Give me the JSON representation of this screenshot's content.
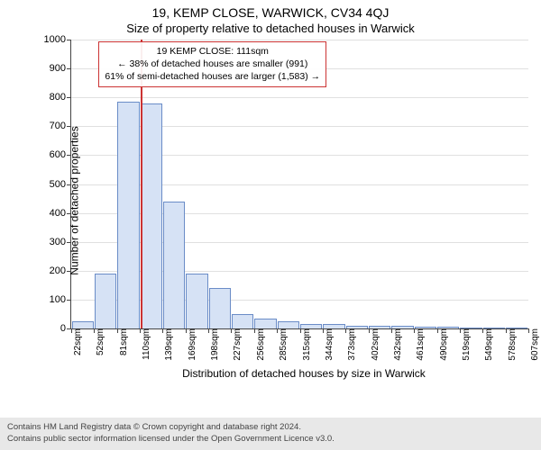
{
  "header": {
    "address": "19, KEMP CLOSE, WARWICK, CV34 4QJ",
    "subtitle": "Size of property relative to detached houses in Warwick"
  },
  "chart": {
    "type": "histogram",
    "y": {
      "label": "Number of detached properties",
      "min": 0,
      "max": 1000,
      "step": 100
    },
    "x": {
      "label": "Distribution of detached houses by size in Warwick",
      "tick_labels": [
        "22sqm",
        "52sqm",
        "81sqm",
        "110sqm",
        "139sqm",
        "169sqm",
        "198sqm",
        "227sqm",
        "256sqm",
        "285sqm",
        "315sqm",
        "344sqm",
        "373sqm",
        "402sqm",
        "432sqm",
        "461sqm",
        "490sqm",
        "519sqm",
        "549sqm",
        "578sqm",
        "607sqm"
      ]
    },
    "bars": [
      25,
      190,
      785,
      780,
      440,
      190,
      140,
      50,
      35,
      25,
      15,
      15,
      10,
      8,
      8,
      5,
      5,
      3,
      3,
      2
    ],
    "bar_fill": "#d6e2f5",
    "bar_stroke": "#6a8cc7",
    "grid_color": "#e0e0e0",
    "background_color": "#ffffff",
    "marker": {
      "value_sqm": 111,
      "color": "#cc3333",
      "annotation": {
        "line1": "19 KEMP CLOSE: 111sqm",
        "line2": "← 38% of detached houses are smaller (991)",
        "line3": "61% of semi-detached houses are larger (1,583) →"
      }
    }
  },
  "footer": {
    "line1": "Contains HM Land Registry data © Crown copyright and database right 2024.",
    "line2": "Contains public sector information licensed under the Open Government Licence v3.0."
  }
}
